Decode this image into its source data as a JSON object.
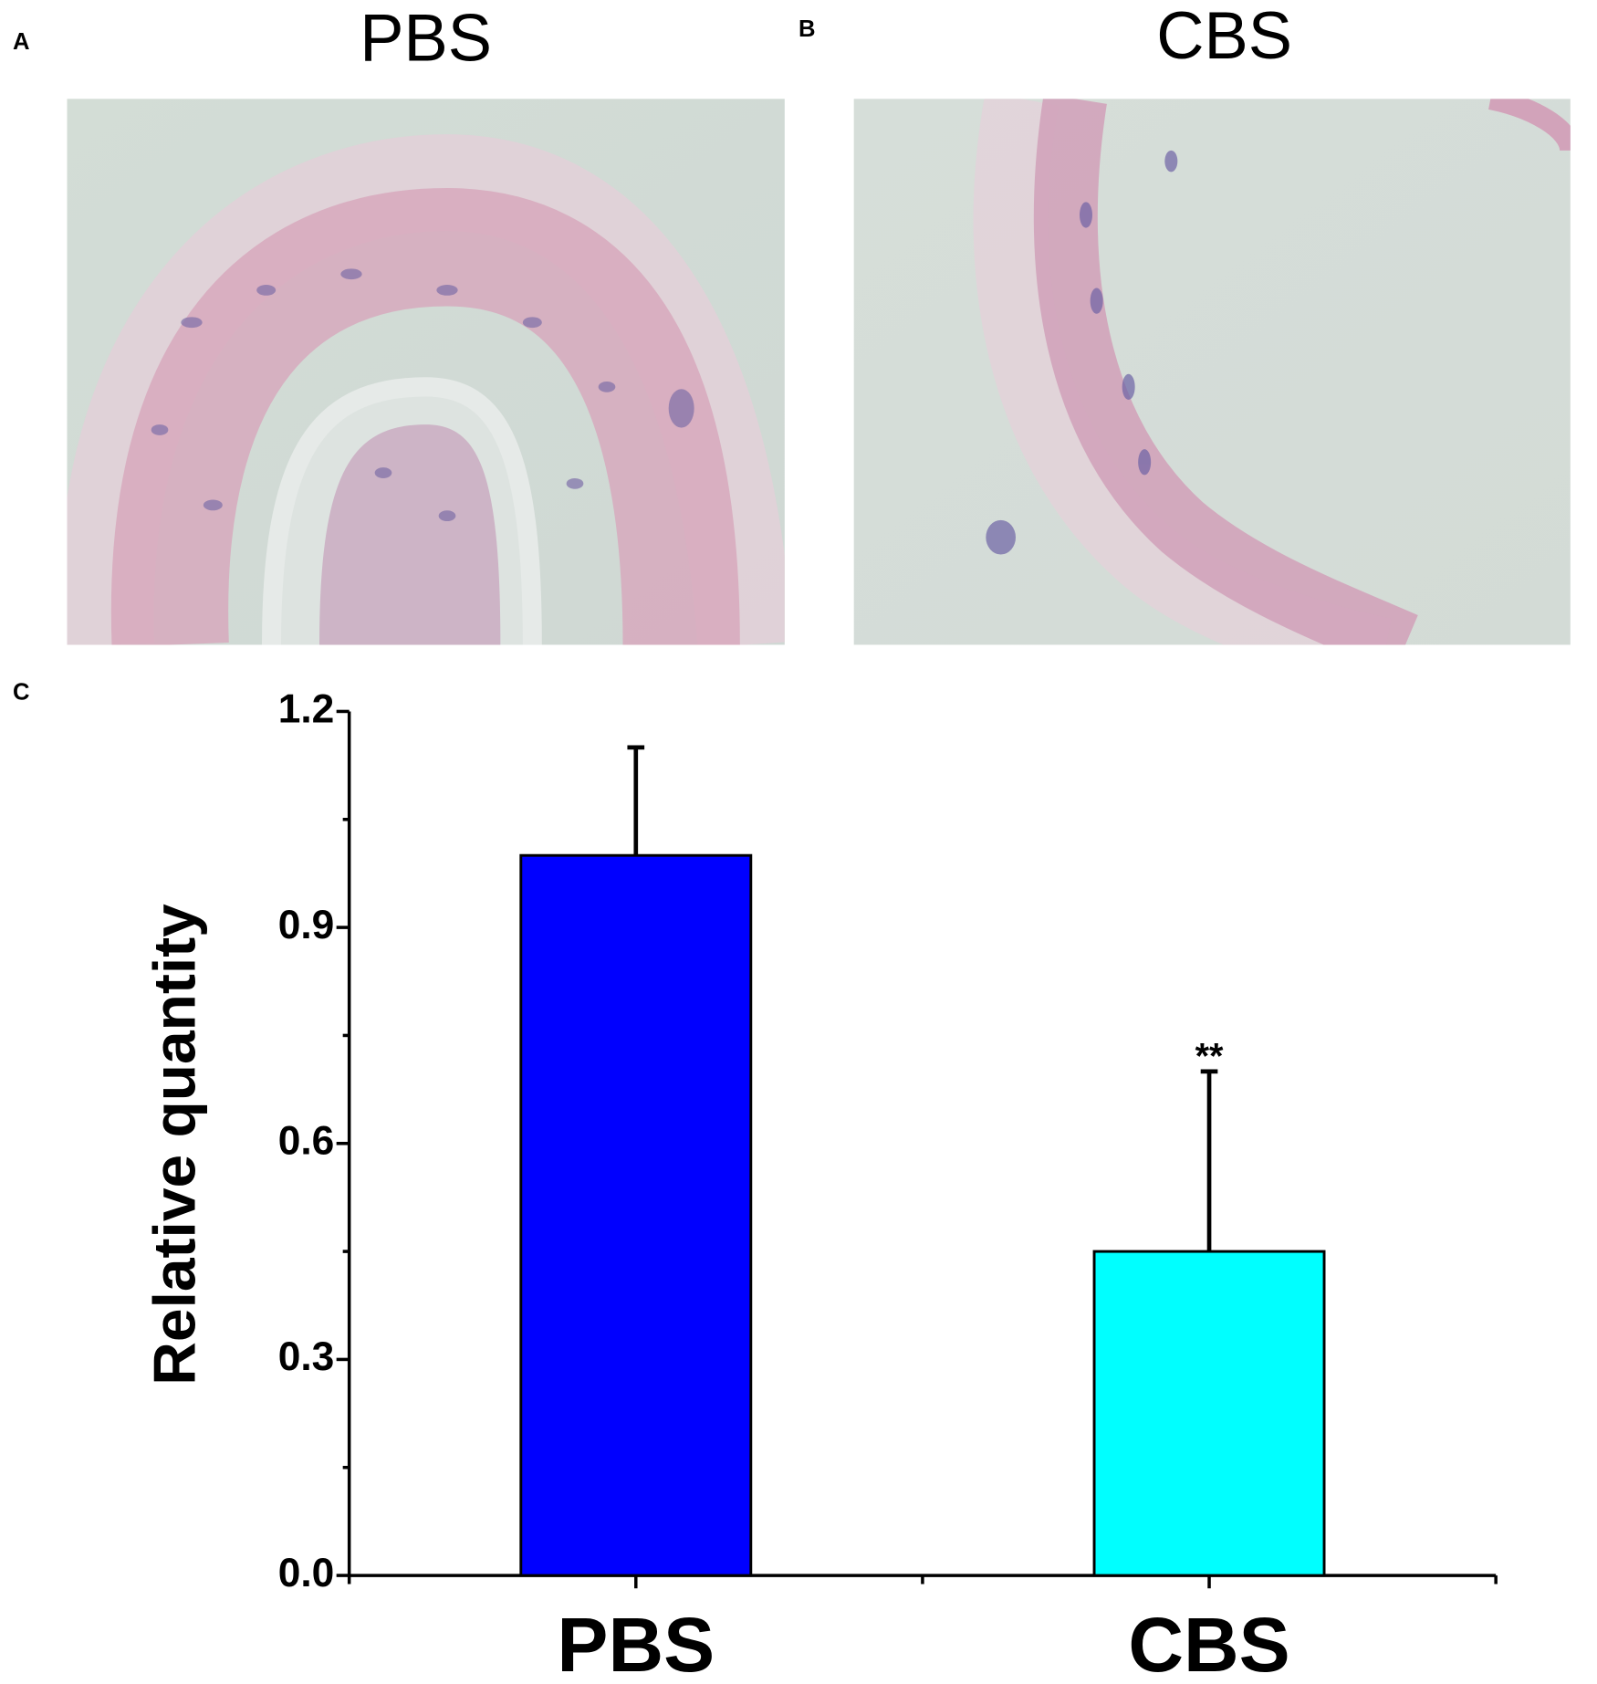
{
  "panels": [
    {
      "label": "A",
      "title": "PBS"
    },
    {
      "label": "B",
      "title": "CBS"
    }
  ],
  "chart_data": {
    "type": "bar",
    "panel_label": "C",
    "y_label": "Relative quantity",
    "categories": [
      "PBS",
      "CBS"
    ],
    "values": [
      1.0,
      0.45
    ],
    "errors": [
      0.15,
      0.25
    ],
    "annotations": [
      null,
      "**"
    ],
    "colors": [
      "#0000ff",
      "#00ffff"
    ],
    "ylim": [
      0,
      1.2
    ],
    "yticks": [
      {
        "value": 0,
        "label": "0.0"
      },
      0.3,
      0.6,
      0.9,
      1.2
    ],
    "yminor": [
      0.15,
      0.45,
      0.75,
      1.05
    ]
  }
}
